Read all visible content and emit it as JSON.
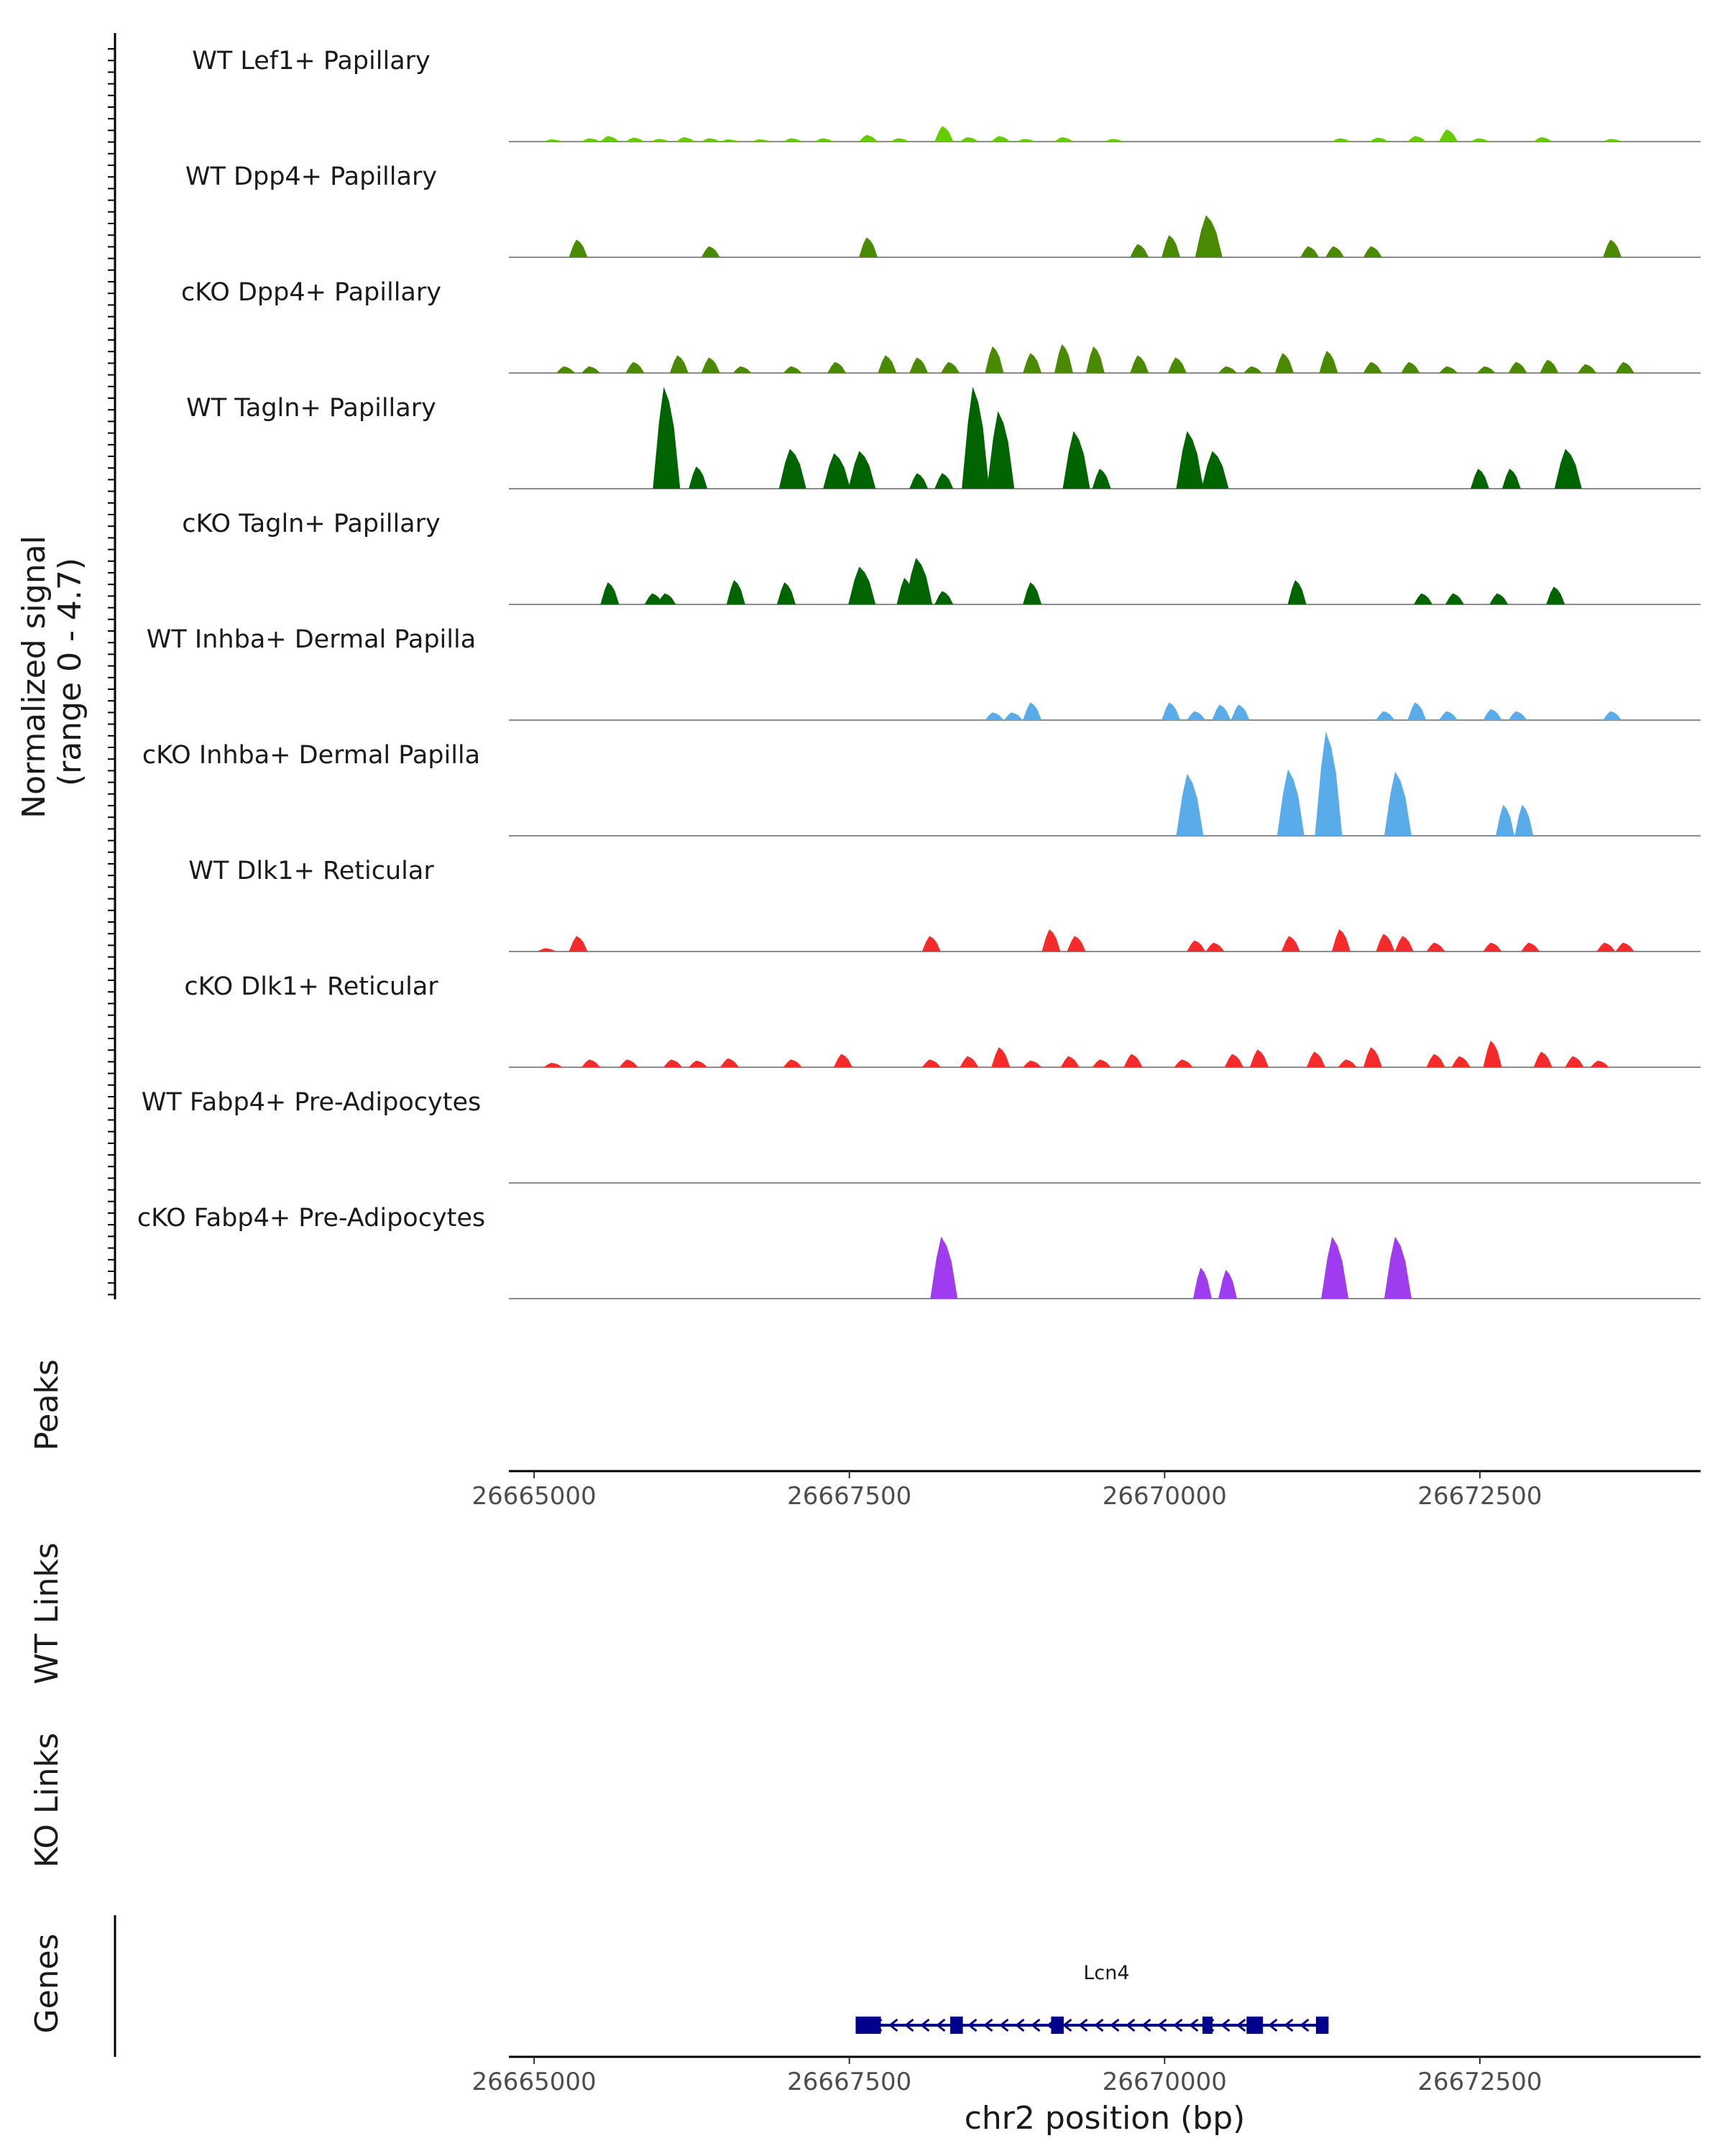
{
  "chart_data": {
    "type": "area",
    "title": "",
    "xlabel": "chr2 position (bp)",
    "ylabel_coverage": "Normalized signal\n(range 0 - 4.7)",
    "ymax": 4.7,
    "xlim": [
      26664800,
      26674250
    ],
    "x_ticks": [
      26665000,
      26667500,
      26670000,
      26672500
    ],
    "x_tick_labels": [
      "26665000",
      "26667500",
      "26670000",
      "26672500"
    ],
    "panel_labels": {
      "peaks": "Peaks",
      "wt_links": "WT Links",
      "ko_links": "KO Links",
      "genes": "Genes"
    },
    "series": [
      {
        "name": "WT Lef1+ Papillary",
        "color": "#66cc00",
        "values": [
          [
            26665150,
            0.1
          ],
          [
            26665450,
            0.15
          ],
          [
            26665600,
            0.25
          ],
          [
            26665800,
            0.18
          ],
          [
            26666000,
            0.12
          ],
          [
            26666200,
            0.2
          ],
          [
            26666400,
            0.15
          ],
          [
            26666550,
            0.1
          ],
          [
            26666800,
            0.1
          ],
          [
            26667050,
            0.15
          ],
          [
            26667300,
            0.15
          ],
          [
            26667650,
            0.3
          ],
          [
            26667900,
            0.15
          ],
          [
            26668250,
            0.7
          ],
          [
            26668450,
            0.2
          ],
          [
            26668700,
            0.25
          ],
          [
            26668900,
            0.12
          ],
          [
            26669200,
            0.2
          ],
          [
            26669600,
            0.12
          ],
          [
            26671400,
            0.15
          ],
          [
            26671700,
            0.18
          ],
          [
            26672000,
            0.25
          ],
          [
            26672250,
            0.55
          ],
          [
            26672500,
            0.15
          ],
          [
            26673000,
            0.2
          ],
          [
            26673550,
            0.12
          ]
        ]
      },
      {
        "name": "WT Dpp4+ Papillary",
        "color": "#4a8a00",
        "values": [
          [
            26665350,
            0.8
          ],
          [
            26666400,
            0.5
          ],
          [
            26667650,
            0.9
          ],
          [
            26669800,
            0.6
          ],
          [
            26670050,
            1.0
          ],
          [
            26670350,
            1.9
          ],
          [
            26671150,
            0.5
          ],
          [
            26671350,
            0.5
          ],
          [
            26671650,
            0.5
          ],
          [
            26673550,
            0.8
          ]
        ]
      },
      {
        "name": "cKO Dpp4+ Papillary",
        "color": "#4a8a00",
        "values": [
          [
            26665250,
            0.3
          ],
          [
            26665450,
            0.3
          ],
          [
            26665800,
            0.5
          ],
          [
            26666150,
            0.8
          ],
          [
            26666400,
            0.7
          ],
          [
            26666650,
            0.3
          ],
          [
            26667050,
            0.3
          ],
          [
            26667400,
            0.5
          ],
          [
            26667800,
            0.8
          ],
          [
            26668050,
            0.7
          ],
          [
            26668300,
            0.5
          ],
          [
            26668650,
            1.2
          ],
          [
            26668950,
            0.9
          ],
          [
            26669200,
            1.3
          ],
          [
            26669450,
            1.2
          ],
          [
            26669800,
            0.8
          ],
          [
            26670100,
            0.7
          ],
          [
            26670500,
            0.3
          ],
          [
            26670700,
            0.3
          ],
          [
            26670950,
            0.9
          ],
          [
            26671300,
            1.0
          ],
          [
            26671650,
            0.5
          ],
          [
            26671950,
            0.5
          ],
          [
            26672250,
            0.3
          ],
          [
            26672550,
            0.3
          ],
          [
            26672800,
            0.5
          ],
          [
            26673050,
            0.6
          ],
          [
            26673350,
            0.4
          ],
          [
            26673650,
            0.5
          ]
        ]
      },
      {
        "name": "WT Tagln+ Papillary",
        "color": "#006400",
        "values": [
          [
            26666050,
            4.6
          ],
          [
            26666300,
            1.0
          ],
          [
            26667050,
            1.8
          ],
          [
            26667400,
            1.6
          ],
          [
            26667600,
            1.7
          ],
          [
            26668050,
            0.7
          ],
          [
            26668250,
            0.7
          ],
          [
            26668500,
            4.6
          ],
          [
            26668700,
            3.5
          ],
          [
            26669300,
            2.6
          ],
          [
            26669500,
            0.9
          ],
          [
            26670200,
            2.6
          ],
          [
            26670400,
            1.7
          ],
          [
            26672500,
            0.9
          ],
          [
            26672750,
            0.9
          ],
          [
            26673200,
            1.8
          ]
        ]
      },
      {
        "name": "cKO Tagln+ Papillary",
        "color": "#006400",
        "values": [
          [
            26665600,
            1.0
          ],
          [
            26665950,
            0.5
          ],
          [
            26666050,
            0.5
          ],
          [
            26666600,
            1.1
          ],
          [
            26667000,
            1.0
          ],
          [
            26667600,
            1.7
          ],
          [
            26667950,
            1.2
          ],
          [
            26668050,
            2.1
          ],
          [
            26668250,
            0.6
          ],
          [
            26668950,
            1.0
          ],
          [
            26671050,
            1.1
          ],
          [
            26672050,
            0.5
          ],
          [
            26672300,
            0.5
          ],
          [
            26672650,
            0.5
          ],
          [
            26673100,
            0.8
          ]
        ]
      },
      {
        "name": "WT Inhba+ Dermal Papilla",
        "color": "#5aabea",
        "values": [
          [
            26668650,
            0.35
          ],
          [
            26668800,
            0.35
          ],
          [
            26668950,
            0.8
          ],
          [
            26670050,
            0.8
          ],
          [
            26670250,
            0.4
          ],
          [
            26670450,
            0.7
          ],
          [
            26670600,
            0.7
          ],
          [
            26671750,
            0.4
          ],
          [
            26672000,
            0.8
          ],
          [
            26672250,
            0.4
          ],
          [
            26672600,
            0.5
          ],
          [
            26672800,
            0.4
          ],
          [
            26673550,
            0.4
          ]
        ]
      },
      {
        "name": "cKO Inhba+ Dermal Papilla",
        "color": "#5aabea",
        "values": [
          [
            26670200,
            2.8
          ],
          [
            26671000,
            3.0
          ],
          [
            26671300,
            4.7
          ],
          [
            26671850,
            2.9
          ],
          [
            26672700,
            1.4
          ],
          [
            26672850,
            1.4
          ]
        ]
      },
      {
        "name": "WT Dlk1+ Reticular",
        "color": "#f52a2a",
        "values": [
          [
            26665100,
            0.15
          ],
          [
            26665350,
            0.7
          ],
          [
            26668150,
            0.7
          ],
          [
            26669100,
            1.0
          ],
          [
            26669300,
            0.7
          ],
          [
            26670250,
            0.5
          ],
          [
            26670400,
            0.4
          ],
          [
            26671000,
            0.7
          ],
          [
            26671400,
            1.0
          ],
          [
            26671750,
            0.8
          ],
          [
            26671900,
            0.7
          ],
          [
            26672150,
            0.4
          ],
          [
            26672600,
            0.4
          ],
          [
            26672900,
            0.4
          ],
          [
            26673500,
            0.4
          ],
          [
            26673650,
            0.4
          ]
        ]
      },
      {
        "name": "cKO Dlk1+ Reticular",
        "color": "#f52a2a",
        "values": [
          [
            26665150,
            0.2
          ],
          [
            26665450,
            0.35
          ],
          [
            26665750,
            0.35
          ],
          [
            26666100,
            0.35
          ],
          [
            26666300,
            0.3
          ],
          [
            26666550,
            0.4
          ],
          [
            26667050,
            0.35
          ],
          [
            26667450,
            0.6
          ],
          [
            26668150,
            0.35
          ],
          [
            26668450,
            0.5
          ],
          [
            26668700,
            0.9
          ],
          [
            26668950,
            0.3
          ],
          [
            26669250,
            0.5
          ],
          [
            26669500,
            0.35
          ],
          [
            26669750,
            0.6
          ],
          [
            26670150,
            0.35
          ],
          [
            26670550,
            0.6
          ],
          [
            26670750,
            0.8
          ],
          [
            26671200,
            0.7
          ],
          [
            26671450,
            0.35
          ],
          [
            26671650,
            0.9
          ],
          [
            26672150,
            0.6
          ],
          [
            26672350,
            0.5
          ],
          [
            26672600,
            1.2
          ],
          [
            26673000,
            0.7
          ],
          [
            26673250,
            0.5
          ],
          [
            26673450,
            0.3
          ]
        ]
      },
      {
        "name": "WT Fabp4+ Pre-Adipocytes",
        "color": "#a03cf0",
        "values": []
      },
      {
        "name": "cKO Fabp4+ Pre-Adipocytes",
        "color": "#a03cf0",
        "values": [
          [
            26668250,
            2.8
          ],
          [
            26670300,
            1.4
          ],
          [
            26670500,
            1.3
          ],
          [
            26671350,
            2.8
          ],
          [
            26671850,
            2.8
          ]
        ]
      }
    ],
    "genes": [
      {
        "name": "Lcn4",
        "strand": "-",
        "start": 26667550,
        "end": 26671300,
        "color": "#00008b",
        "exons": [
          [
            26667550,
            26667750
          ],
          [
            26668300,
            26668400
          ],
          [
            26669100,
            26669200
          ],
          [
            26670300,
            26670380
          ],
          [
            26670650,
            26670780
          ],
          [
            26671200,
            26671300
          ]
        ]
      }
    ]
  }
}
